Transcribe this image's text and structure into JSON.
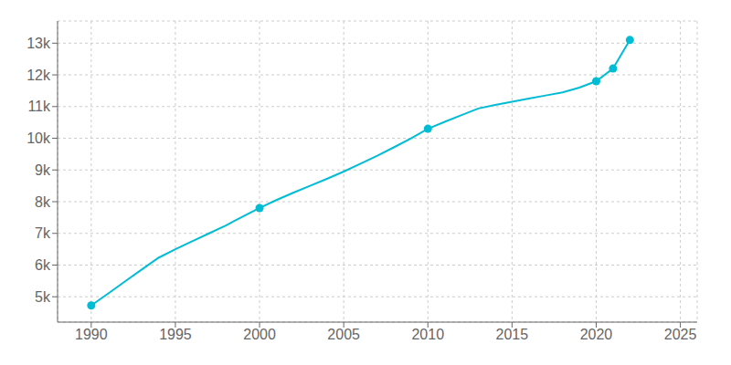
{
  "chart_data": {
    "type": "line",
    "series": [
      {
        "type": "line",
        "color": "#00BCD4",
        "marker": "none",
        "x": [
          1990,
          1991,
          1992,
          1993,
          1994,
          1995,
          1996,
          1997,
          1998,
          1999,
          2000,
          2001,
          2002,
          2003,
          2004,
          2005,
          2006,
          2007,
          2008,
          2009,
          2010,
          2011,
          2012,
          2013,
          2014,
          2015,
          2016,
          2017,
          2018,
          2019,
          2020,
          2021,
          2022
        ],
        "values": [
          4725,
          5100,
          5480,
          5860,
          6230,
          6500,
          6750,
          7000,
          7250,
          7530,
          7800,
          8050,
          8280,
          8500,
          8720,
          8950,
          9200,
          9450,
          9720,
          10000,
          10300,
          10520,
          10730,
          10940,
          11050,
          11150,
          11250,
          11350,
          11450,
          11600,
          11800,
          12200,
          13100
        ]
      },
      {
        "type": "scatter",
        "color": "#00BCD4",
        "marker": "circle",
        "x": [
          1990,
          2000,
          2010,
          2020,
          2021,
          2022
        ],
        "values": [
          4725,
          7800,
          10300,
          11800,
          12200,
          13100
        ]
      }
    ],
    "xlim": [
      1988,
      2026
    ],
    "ylim": [
      4200,
      13700
    ],
    "xticks": [
      1990,
      1995,
      2000,
      2005,
      2010,
      2015,
      2020,
      2025
    ],
    "yticks": [
      {
        "value": 5000,
        "label": "5k"
      },
      {
        "value": 6000,
        "label": "6k"
      },
      {
        "value": 7000,
        "label": "7k"
      },
      {
        "value": 8000,
        "label": "8k"
      },
      {
        "value": 9000,
        "label": "9k"
      },
      {
        "value": 10000,
        "label": "10k"
      },
      {
        "value": 11000,
        "label": "11k"
      },
      {
        "value": 12000,
        "label": "12k"
      },
      {
        "value": 13000,
        "label": "13k"
      }
    ],
    "grid": true
  }
}
